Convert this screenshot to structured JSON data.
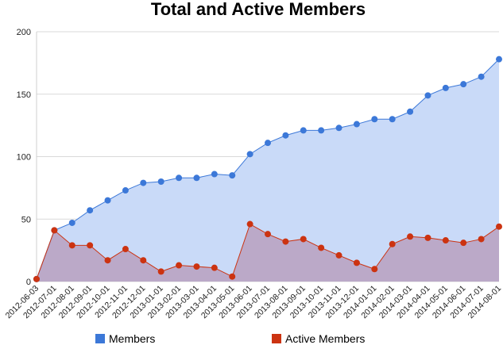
{
  "chart_data": {
    "type": "area",
    "title": "Total and Active Members",
    "xlabel": "",
    "ylabel": "",
    "ylim": [
      0,
      200
    ],
    "yticks": [
      0,
      50,
      100,
      150,
      200
    ],
    "grid": true,
    "legend_position": "bottom",
    "categories": [
      "2012-06-03",
      "2012-07-01",
      "2012-08-01",
      "2012-09-01",
      "2012-10-01",
      "2012-11-01",
      "2012-12-01",
      "2013-01-01",
      "2013-02-01",
      "2013-03-01",
      "2013-04-01",
      "2013-05-01",
      "2013-06-01",
      "2013-07-01",
      "2013-08-01",
      "2013-09-01",
      "2013-10-01",
      "2013-11-01",
      "2013-12-01",
      "2014-01-01",
      "2014-02-01",
      "2014-03-01",
      "2014-04-01",
      "2014-05-01",
      "2014-06-01",
      "2014-07-01",
      "2014-08-01"
    ],
    "series": [
      {
        "name": "Members",
        "color": "#3c78d8",
        "fill": "#c9daf8",
        "values": [
          2,
          41,
          47,
          57,
          65,
          73,
          79,
          80,
          83,
          83,
          86,
          85,
          102,
          111,
          117,
          121,
          121,
          123,
          126,
          130,
          130,
          136,
          149,
          155,
          158,
          164,
          178
        ]
      },
      {
        "name": "Active Members",
        "color": "#cc3311",
        "fill": "#b9a0c0",
        "values": [
          2,
          41,
          29,
          29,
          17,
          26,
          17,
          8,
          13,
          12,
          11,
          4,
          46,
          38,
          32,
          34,
          27,
          21,
          15,
          10,
          30,
          36,
          35,
          33,
          31,
          34,
          44
        ]
      }
    ]
  }
}
